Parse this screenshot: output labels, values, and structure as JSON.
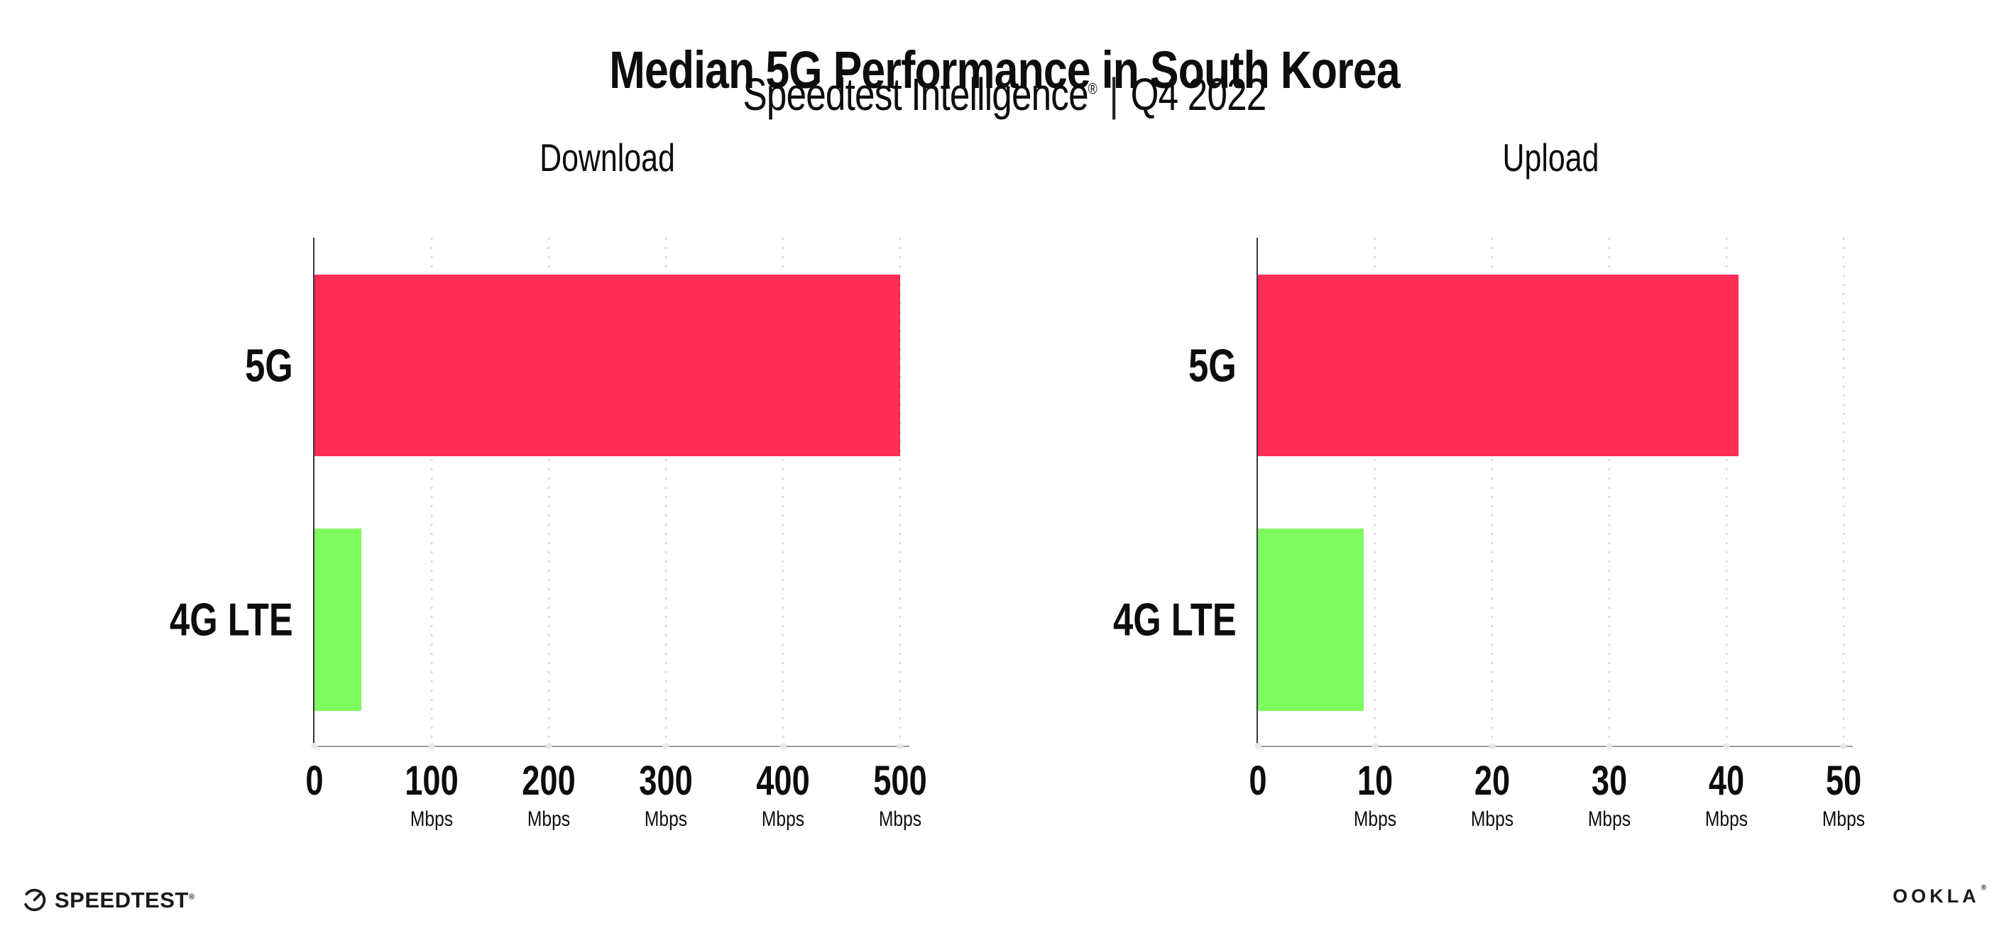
{
  "header": {
    "title": "Median 5G Performance in South Korea",
    "subtitle": {
      "product": "Speedtest Intelligence",
      "registered_mark": "®",
      "separator": "|",
      "period": "Q4 2022"
    }
  },
  "colors": {
    "bar_5g": "#fd2d56",
    "bar_4g_lte": "#7efb5f",
    "gridline": "#d9dce5",
    "y_axis": "#343a40",
    "x_axis": "#9b9b9b",
    "text": "#0d0d0d"
  },
  "chart_data": [
    {
      "type": "bar",
      "orientation": "horizontal",
      "title": "Download",
      "categories": [
        "5G",
        "4G LTE"
      ],
      "values": [
        500,
        40
      ],
      "value_unit": "Mbps",
      "xlim": [
        0,
        500
      ],
      "ticks": [
        0,
        100,
        200,
        300,
        400,
        500
      ],
      "tick_unit": "Mbps",
      "bar_colors": [
        "#fd2d56",
        "#7efb5f"
      ],
      "grid": "dotted-vertical",
      "legend": "none"
    },
    {
      "type": "bar",
      "orientation": "horizontal",
      "title": "Upload",
      "categories": [
        "5G",
        "4G LTE"
      ],
      "values": [
        41,
        9
      ],
      "value_unit": "Mbps",
      "xlim": [
        0,
        50
      ],
      "ticks": [
        0,
        10,
        20,
        30,
        40,
        50
      ],
      "tick_unit": "Mbps",
      "bar_colors": [
        "#fd2d56",
        "#7efb5f"
      ],
      "grid": "dotted-vertical",
      "legend": "none"
    }
  ],
  "footer": {
    "speedtest_label": "SPEEDTEST",
    "speedtest_mark": "®",
    "ookla_label": "OOKLA",
    "ookla_mark": "®"
  }
}
